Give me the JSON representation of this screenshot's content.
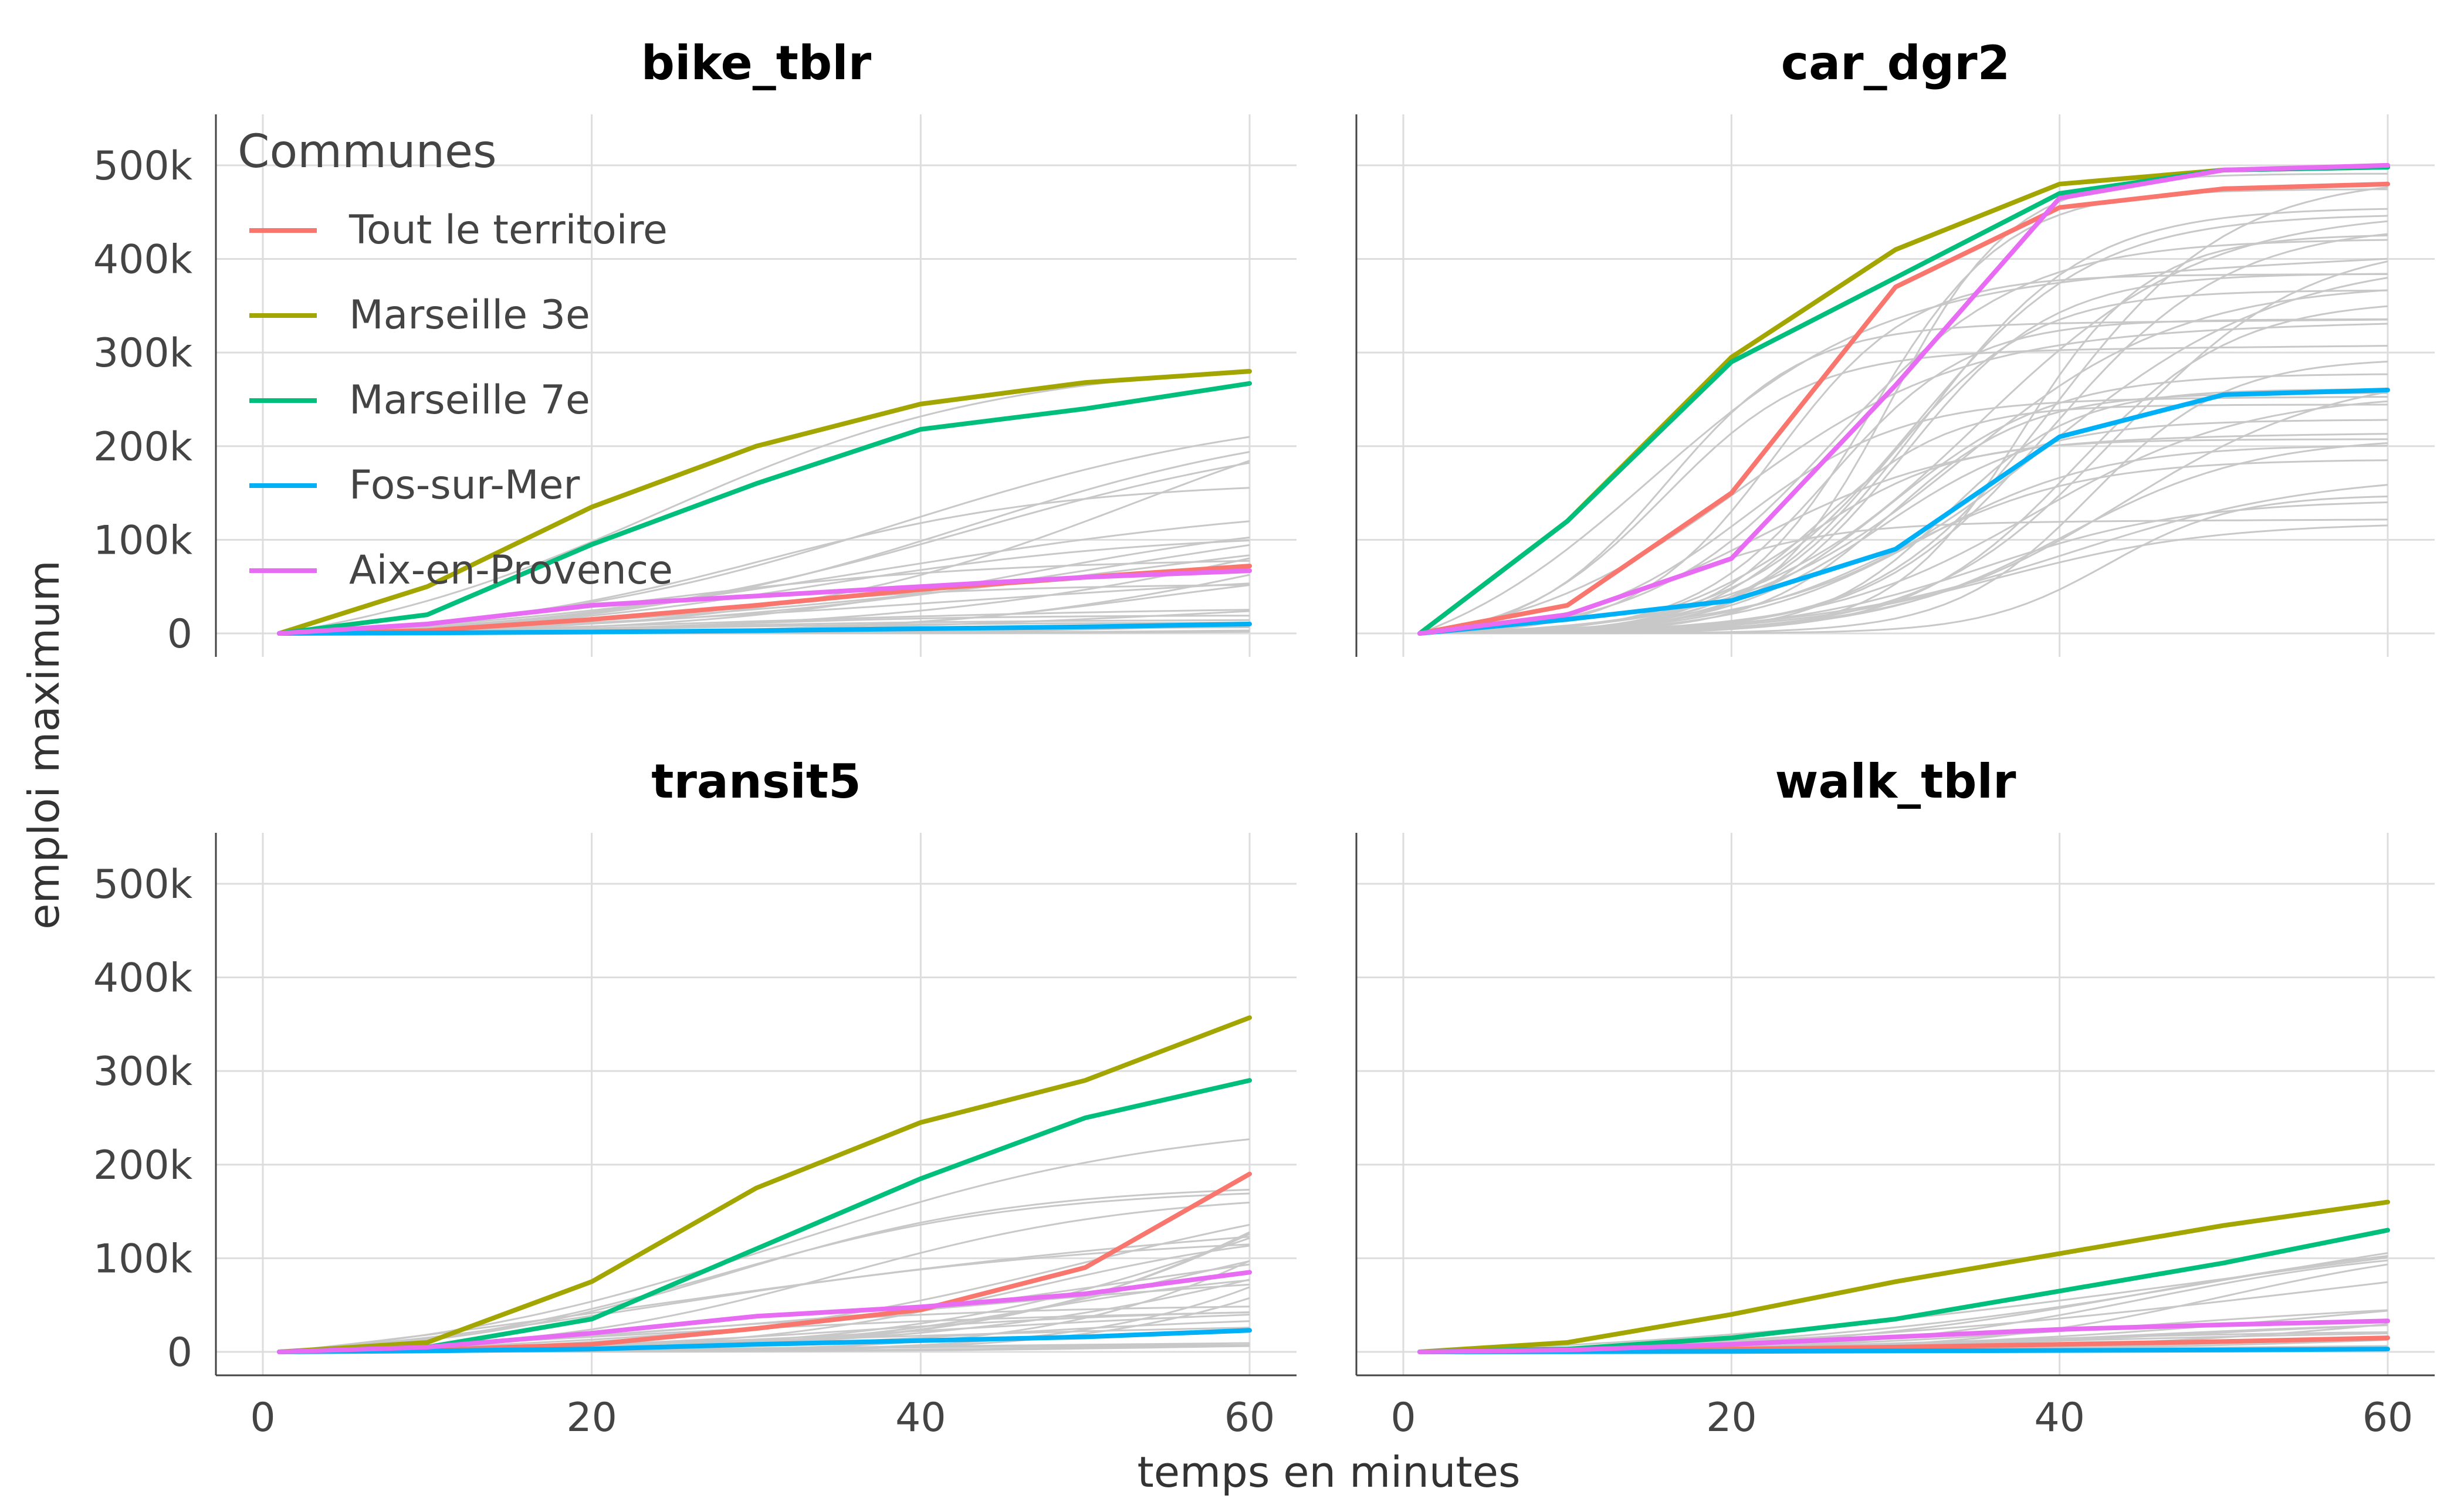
{
  "chart_data": {
    "type": "line",
    "facets": [
      "bike_tblr",
      "car_dgr2",
      "transit5",
      "walk_tblr"
    ],
    "xlabel": "temps en minutes",
    "ylabel": "emploi maximum",
    "xlim": [
      0,
      60
    ],
    "ylim": [
      0,
      520000
    ],
    "x_ticks": [
      0,
      20,
      40,
      60
    ],
    "x_tick_labels": [
      "0",
      "20",
      "40",
      "60"
    ],
    "y_ticks": [
      0,
      100000,
      200000,
      300000,
      400000,
      500000
    ],
    "y_tick_labels": [
      "0",
      "100k",
      "200k",
      "300k",
      "400k",
      "500k"
    ],
    "grid": true,
    "legend": {
      "title": "Communes",
      "placement": "inside top-left of bike_tblr panel",
      "entries": [
        "Tout le territoire",
        "Marseille 3e",
        "Marseille 7e",
        "Fos-sur-Mer",
        "Aix-en-Provence"
      ]
    },
    "colors": {
      "Tout le territoire": "#F8766D",
      "Marseille 3e": "#A3A500",
      "Marseille 7e": "#00BF7D",
      "Fos-sur-Mer": "#00B0F6",
      "Aix-en-Provence": "#E76BF3",
      "background_communes": "#C8C8C8"
    },
    "x": [
      1,
      10,
      20,
      30,
      40,
      50,
      60
    ],
    "panels": [
      {
        "facet": "bike_tblr",
        "series": [
          {
            "name": "Tout le territoire",
            "values": [
              0,
              3000,
              15000,
              30000,
              47000,
              60000,
              72000
            ]
          },
          {
            "name": "Marseille 3e",
            "values": [
              0,
              50000,
              135000,
              200000,
              245000,
              268000,
              280000
            ]
          },
          {
            "name": "Marseille 7e",
            "values": [
              0,
              20000,
              95000,
              160000,
              218000,
              240000,
              267000
            ]
          },
          {
            "name": "Fos-sur-Mer",
            "values": [
              0,
              500,
              1500,
              3000,
              5000,
              7000,
              10000
            ]
          },
          {
            "name": "Aix-en-Provence",
            "values": [
              0,
              10000,
              30000,
              40000,
              50000,
              60000,
              67000
            ]
          }
        ],
        "background_series_count": 30
      },
      {
        "facet": "car_dgr2",
        "series": [
          {
            "name": "Tout le territoire",
            "values": [
              0,
              30000,
              150000,
              370000,
              455000,
              475000,
              480000
            ]
          },
          {
            "name": "Marseille 3e",
            "values": [
              0,
              120000,
              295000,
              410000,
              480000,
              495000,
              498000
            ]
          },
          {
            "name": "Marseille 7e",
            "values": [
              0,
              120000,
              290000,
              380000,
              470000,
              495000,
              498000
            ]
          },
          {
            "name": "Fos-sur-Mer",
            "values": [
              0,
              15000,
              35000,
              90000,
              210000,
              255000,
              260000
            ]
          },
          {
            "name": "Aix-en-Provence",
            "values": [
              0,
              20000,
              80000,
              265000,
              465000,
              495000,
              500000
            ]
          }
        ],
        "background_series_count": 40
      },
      {
        "facet": "transit5",
        "series": [
          {
            "name": "Tout le territoire",
            "values": [
              0,
              2000,
              8000,
              25000,
              45000,
              90000,
              190000
            ]
          },
          {
            "name": "Marseille 3e",
            "values": [
              0,
              10000,
              75000,
              175000,
              245000,
              290000,
              357000
            ]
          },
          {
            "name": "Marseille 7e",
            "values": [
              0,
              5000,
              35000,
              110000,
              185000,
              250000,
              290000
            ]
          },
          {
            "name": "Fos-sur-Mer",
            "values": [
              0,
              1000,
              3000,
              8000,
              12000,
              16000,
              23000
            ]
          },
          {
            "name": "Aix-en-Provence",
            "values": [
              0,
              5000,
              20000,
              38000,
              48000,
              62000,
              85000
            ]
          }
        ],
        "background_series_count": 30
      },
      {
        "facet": "walk_tblr",
        "series": [
          {
            "name": "Tout le territoire",
            "values": [
              0,
              1000,
              3000,
              5000,
              8000,
              11000,
              15000
            ]
          },
          {
            "name": "Marseille 3e",
            "values": [
              0,
              10000,
              40000,
              75000,
              105000,
              135000,
              160000
            ]
          },
          {
            "name": "Marseille 7e",
            "values": [
              0,
              3000,
              15000,
              35000,
              65000,
              95000,
              130000
            ]
          },
          {
            "name": "Fos-sur-Mer",
            "values": [
              0,
              200,
              500,
              1000,
              1500,
              2000,
              3000
            ]
          },
          {
            "name": "Aix-en-Provence",
            "values": [
              0,
              2000,
              8000,
              16000,
              24000,
              29000,
              33000
            ]
          }
        ],
        "background_series_count": 20
      }
    ]
  }
}
